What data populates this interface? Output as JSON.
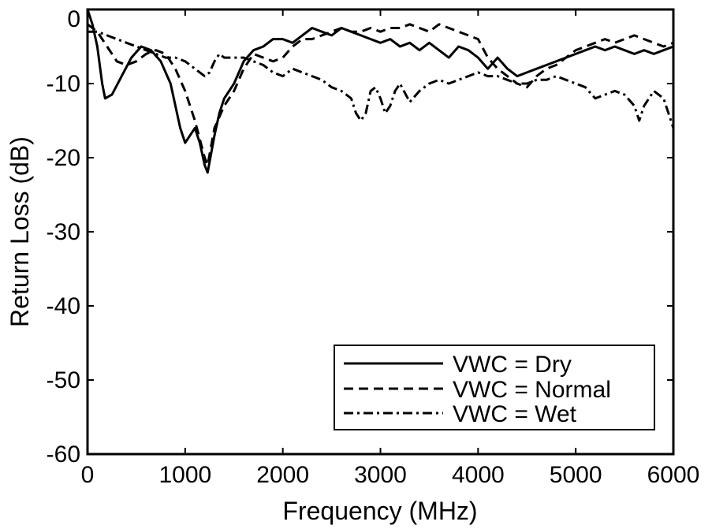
{
  "chart_data": {
    "type": "line",
    "title": "",
    "xlabel": "Frequency (MHz)",
    "ylabel": "Return Loss (dB)",
    "xlim": [
      0,
      6000
    ],
    "ylim": [
      -60,
      0
    ],
    "xticks": [
      0,
      1000,
      2000,
      3000,
      4000,
      5000,
      6000
    ],
    "xtick_labels": [
      "0",
      "1000",
      "2000",
      "3000",
      "4000",
      "5000",
      "6000"
    ],
    "yticks": [
      0,
      -10,
      -20,
      -30,
      -40,
      -50,
      -60
    ],
    "ytick_labels": [
      "0",
      "-10",
      "-20",
      "-30",
      "-40",
      "-50",
      "-60"
    ],
    "grid": false,
    "legend_position": "bottom-right",
    "series": [
      {
        "name": "VWC = Dry",
        "style": "solid",
        "x": [
          0,
          50,
          100,
          150,
          180,
          250,
          350,
          450,
          550,
          650,
          750,
          850,
          950,
          1000,
          1050,
          1100,
          1150,
          1200,
          1230,
          1300,
          1350,
          1400,
          1450,
          1500,
          1600,
          1700,
          1800,
          1900,
          2000,
          2100,
          2200,
          2300,
          2400,
          2500,
          2600,
          2700,
          2800,
          2900,
          3000,
          3100,
          3200,
          3300,
          3400,
          3500,
          3600,
          3700,
          3800,
          3900,
          4000,
          4100,
          4200,
          4300,
          4400,
          4500,
          4600,
          4700,
          4800,
          4900,
          5000,
          5100,
          5200,
          5300,
          5400,
          5500,
          5600,
          5700,
          5800,
          5900,
          6000
        ],
        "y": [
          0,
          -2,
          -5,
          -10,
          -12,
          -11.5,
          -9,
          -6.5,
          -5,
          -5.5,
          -7,
          -10,
          -16,
          -18,
          -17,
          -16,
          -18,
          -21,
          -22,
          -17,
          -14,
          -12,
          -11,
          -10,
          -7,
          -5.5,
          -5,
          -4,
          -4,
          -4.5,
          -3.5,
          -2.5,
          -3,
          -3.5,
          -2.5,
          -3,
          -3.5,
          -4,
          -4.5,
          -4,
          -5,
          -4.5,
          -5.5,
          -4.5,
          -5.5,
          -6.5,
          -5,
          -5.5,
          -6.5,
          -8,
          -6.5,
          -8,
          -9,
          -8.5,
          -8,
          -7.5,
          -7,
          -6.5,
          -6,
          -5.5,
          -5,
          -5.5,
          -5,
          -5.5,
          -6,
          -5.5,
          -6,
          -5.5,
          -5
        ]
      },
      {
        "name": "VWC = Normal",
        "style": "dashed",
        "x": [
          0,
          100,
          200,
          300,
          400,
          500,
          600,
          700,
          800,
          900,
          1000,
          1100,
          1200,
          1230,
          1300,
          1400,
          1500,
          1600,
          1700,
          1800,
          1900,
          2000,
          2100,
          2200,
          2300,
          2400,
          2500,
          2600,
          2700,
          2800,
          2900,
          3000,
          3100,
          3200,
          3300,
          3400,
          3500,
          3600,
          3700,
          3800,
          3900,
          4000,
          4100,
          4200,
          4300,
          4400,
          4500,
          4600,
          4700,
          4800,
          4900,
          5000,
          5100,
          5200,
          5300,
          5400,
          5500,
          5600,
          5700,
          5800,
          5900,
          6000
        ],
        "y": [
          -2,
          -3,
          -5,
          -7,
          -7.5,
          -7,
          -6,
          -5.5,
          -6,
          -8,
          -11,
          -15,
          -20,
          -21,
          -16,
          -13,
          -11,
          -8,
          -6,
          -6.5,
          -7,
          -6.5,
          -5,
          -4,
          -4,
          -3.5,
          -3,
          -2.5,
          -3,
          -3,
          -2.5,
          -3,
          -2.5,
          -2.5,
          -2,
          -2.5,
          -3,
          -2,
          -2.5,
          -3,
          -3.5,
          -4,
          -6.5,
          -8,
          -9,
          -10,
          -10.5,
          -9,
          -8,
          -7.5,
          -6.5,
          -5.5,
          -5,
          -4.5,
          -4,
          -4.5,
          -4,
          -3.5,
          -4,
          -4.5,
          -5,
          -4.5
        ]
      },
      {
        "name": "VWC = Wet",
        "style": "dashdot",
        "x": [
          0,
          100,
          200,
          300,
          400,
          500,
          600,
          700,
          800,
          900,
          1000,
          1050,
          1100,
          1150,
          1200,
          1250,
          1300,
          1350,
          1400,
          1500,
          1600,
          1700,
          1800,
          1900,
          2000,
          2100,
          2200,
          2300,
          2400,
          2500,
          2600,
          2700,
          2750,
          2800,
          2850,
          2900,
          2950,
          3000,
          3050,
          3100,
          3150,
          3200,
          3300,
          3400,
          3500,
          3600,
          3700,
          3800,
          3900,
          4000,
          4100,
          4200,
          4300,
          4400,
          4500,
          4600,
          4700,
          4800,
          4900,
          5000,
          5100,
          5200,
          5300,
          5400,
          5500,
          5600,
          5650,
          5700,
          5800,
          5900,
          6000
        ],
        "y": [
          -3,
          -3,
          -3.5,
          -4,
          -4.5,
          -5,
          -5.5,
          -6,
          -6.5,
          -6.5,
          -7,
          -7.5,
          -8,
          -8.5,
          -9,
          -8.5,
          -7,
          -6,
          -6.5,
          -6.5,
          -6.5,
          -7,
          -7.5,
          -8.5,
          -9,
          -8,
          -8.5,
          -9,
          -9.5,
          -10.5,
          -11,
          -12,
          -14,
          -15,
          -14,
          -11,
          -10.5,
          -12,
          -14,
          -13,
          -11,
          -10,
          -12.5,
          -11,
          -10,
          -9.5,
          -10,
          -9.5,
          -9,
          -8.5,
          -9,
          -9,
          -9.5,
          -10,
          -10,
          -9.5,
          -9.5,
          -9,
          -9.5,
          -10,
          -10.5,
          -12,
          -11.5,
          -11,
          -11.5,
          -13,
          -15,
          -13,
          -11,
          -12,
          -16
        ]
      }
    ]
  }
}
